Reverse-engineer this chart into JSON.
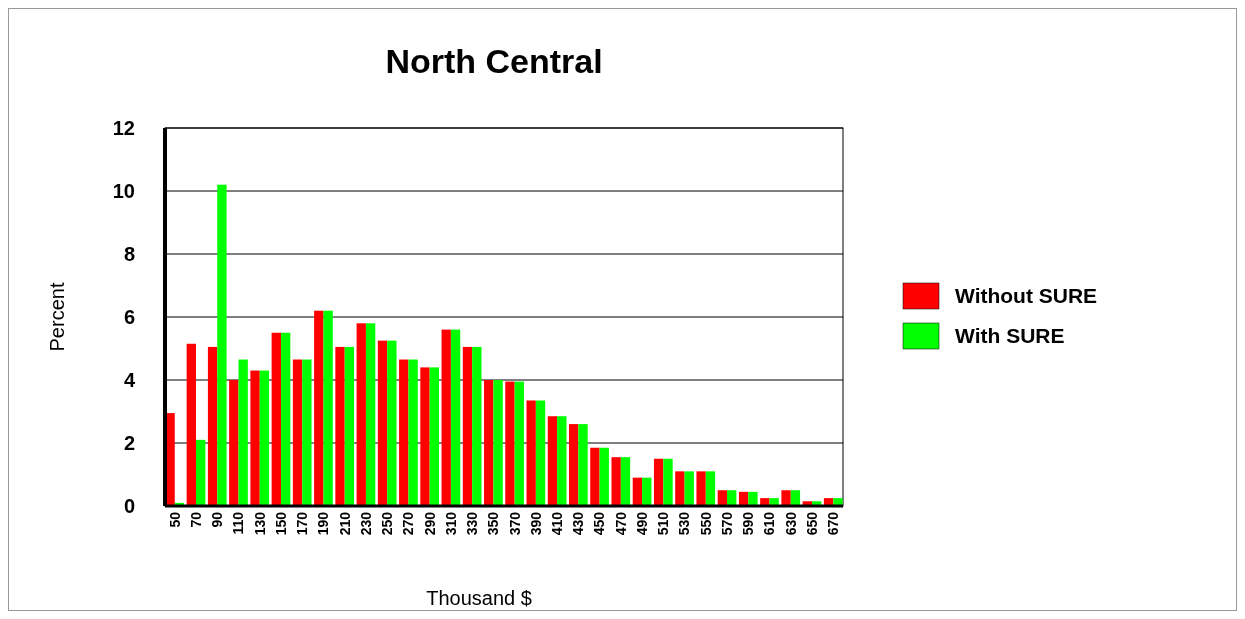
{
  "chart_data": {
    "type": "bar",
    "title": "North Central",
    "xlabel": "Thousand $",
    "ylabel": "Percent",
    "categories": [
      "50",
      "70",
      "90",
      "110",
      "130",
      "150",
      "170",
      "190",
      "210",
      "230",
      "250",
      "270",
      "290",
      "310",
      "330",
      "350",
      "370",
      "390",
      "410",
      "430",
      "450",
      "470",
      "490",
      "510",
      "530",
      "550",
      "570",
      "590",
      "610",
      "630",
      "650",
      "670"
    ],
    "series": [
      {
        "name": "Without SURE",
        "color": "#ff0000",
        "values": [
          2.95,
          5.15,
          5.05,
          4.0,
          4.3,
          5.5,
          4.65,
          6.2,
          5.05,
          5.8,
          5.25,
          4.65,
          4.4,
          5.6,
          5.05,
          4.0,
          3.95,
          3.35,
          2.85,
          2.6,
          1.85,
          1.55,
          0.9,
          1.5,
          1.1,
          1.1,
          0.5,
          0.45,
          0.25,
          0.5,
          0.15,
          0.25
        ]
      },
      {
        "name": "With SURE",
        "color": "#00ff00",
        "values": [
          0.1,
          2.1,
          10.2,
          4.65,
          4.3,
          5.5,
          4.65,
          6.2,
          5.05,
          5.8,
          5.25,
          4.65,
          4.4,
          5.6,
          5.05,
          4.0,
          3.95,
          3.35,
          2.85,
          2.6,
          1.85,
          1.55,
          0.9,
          1.5,
          1.1,
          1.1,
          0.5,
          0.45,
          0.25,
          0.5,
          0.15,
          0.25
        ]
      }
    ],
    "ylim": [
      0,
      12
    ],
    "yticks": [
      0,
      2,
      4,
      6,
      8,
      10,
      12
    ],
    "grid": "y",
    "legend": "right"
  }
}
